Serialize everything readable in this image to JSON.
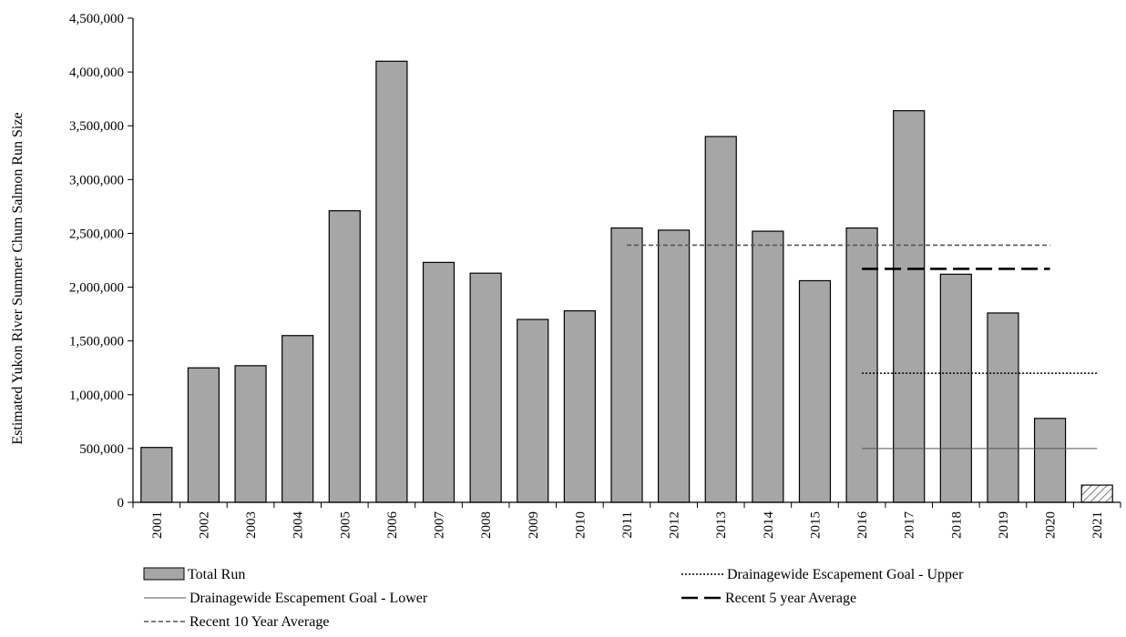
{
  "chart_data": {
    "type": "bar",
    "title": "",
    "xlabel": "",
    "ylabel": "Estimated Yukon River Summer Chum Salmon Run Size",
    "ylim": [
      0,
      4500000
    ],
    "yticks": [
      0,
      500000,
      1000000,
      1500000,
      2000000,
      2500000,
      3000000,
      3500000,
      4000000,
      4500000
    ],
    "ytick_labels": [
      "0",
      "500,000",
      "1,000,000",
      "1,500,000",
      "2,000,000",
      "2,500,000",
      "3,000,000",
      "3,500,000",
      "4,000,000",
      "4,500,000"
    ],
    "grid": false,
    "categories": [
      "2001",
      "2002",
      "2003",
      "2004",
      "2005",
      "2006",
      "2007",
      "2008",
      "2009",
      "2010",
      "2011",
      "2012",
      "2013",
      "2014",
      "2015",
      "2016",
      "2017",
      "2018",
      "2019",
      "2020",
      "2021"
    ],
    "series": [
      {
        "name": "Total Run",
        "values": [
          510000,
          1250000,
          1270000,
          1550000,
          2710000,
          4100000,
          2230000,
          2130000,
          1700000,
          1780000,
          2550000,
          2530000,
          3400000,
          2520000,
          2060000,
          2550000,
          3640000,
          2120000,
          1760000,
          780000,
          160000
        ],
        "color": "#a6a6a6",
        "hatched_category": "2021"
      }
    ],
    "reference_lines": [
      {
        "name": "Drainagewide Escapement Goal - Upper",
        "value": 1200000,
        "from": "2016",
        "to": "2021",
        "style": "dotted",
        "color": "#000000"
      },
      {
        "name": "Drainagewide Escapement Goal - Lower",
        "value": 500000,
        "from": "2016",
        "to": "2021",
        "style": "solid-thin",
        "color": "#555555"
      },
      {
        "name": "Recent 5 year Average",
        "value": 2170000,
        "from": "2016",
        "to": "2020",
        "style": "long-dash",
        "color": "#000000"
      },
      {
        "name": "Recent 10 Year Average",
        "value": 2390000,
        "from": "2011",
        "to": "2020",
        "style": "short-dash",
        "color": "#555555"
      }
    ],
    "legend": [
      {
        "label": "Total Run",
        "kind": "bar"
      },
      {
        "label": "Drainagewide Escapement Goal - Upper",
        "kind": "dotted"
      },
      {
        "label": "Drainagewide Escapement Goal - Lower",
        "kind": "solid-thin"
      },
      {
        "label": "Recent 5 year Average",
        "kind": "long-dash"
      },
      {
        "label": "Recent 10 Year Average",
        "kind": "short-dash"
      }
    ],
    "legend_placement": "bottom"
  }
}
